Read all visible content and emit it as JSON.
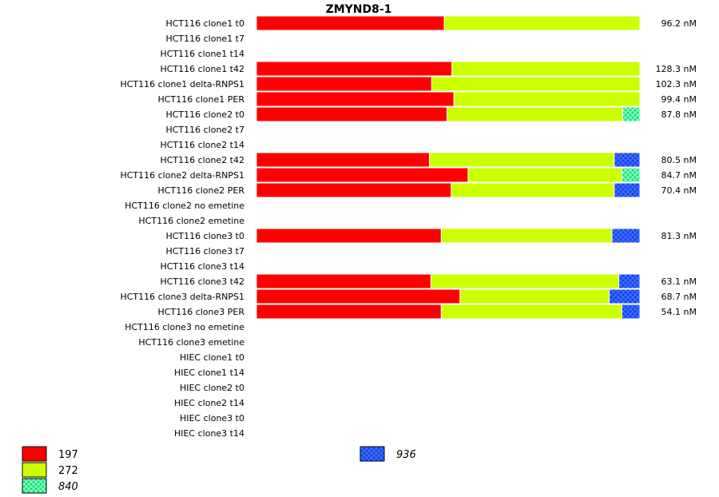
{
  "chart_data": {
    "type": "bar",
    "stacked": true,
    "normalized": true,
    "title": "ZMYND8-1",
    "categories": [
      "HCT116 clone1 t0",
      "HCT116 clone1 t7",
      "HCT116 clone1 t14",
      "HCT116 clone1 t42",
      "HCT116 clone1 delta-RNPS1",
      "HCT116 clone1 PER",
      "HCT116 clone2 t0",
      "HCT116 clone2 t7",
      "HCT116 clone2 t14",
      "HCT116 clone2 t42",
      "HCT116 clone2 delta-RNPS1",
      "HCT116 clone2 PER",
      "HCT116 clone2 no emetine",
      "HCT116 clone2 emetine",
      "HCT116 clone3 t0",
      "HCT116 clone3 t7",
      "HCT116 clone3 t14",
      "HCT116 clone3 t42",
      "HCT116 clone3 delta-RNPS1",
      "HCT116 clone3 PER",
      "HCT116 clone3 no emetine",
      "HCT116 clone3 emetine",
      "HIEC clone1 t0",
      "HIEC clone1 t14",
      "HIEC clone2 t0",
      "HIEC clone2 t14",
      "HIEC clone3 t0",
      "HIEC clone3 t14"
    ],
    "totals": [
      "96.2 nM",
      "",
      "",
      "128.3 nM",
      "102.3 nM",
      "99.4 nM",
      "87.8 nM",
      "",
      "",
      "80.5 nM",
      "84.7 nM",
      "70.4 nM",
      "",
      "",
      "81.3 nM",
      "",
      "",
      "63.1 nM",
      "68.7 nM",
      "54.1 nM",
      "",
      "",
      "",
      "",
      "",
      "",
      "",
      ""
    ],
    "series": [
      {
        "name": "197",
        "color": "#ff0000",
        "pattern": "solid",
        "italic": false,
        "values": [
          0.49,
          null,
          null,
          0.51,
          0.457,
          0.515,
          0.497,
          null,
          null,
          0.451,
          0.552,
          0.508,
          null,
          null,
          0.482,
          null,
          null,
          0.455,
          0.531,
          0.482,
          null,
          null,
          null,
          null,
          null,
          null,
          null,
          null
        ]
      },
      {
        "name": "272",
        "color": "#ccff00",
        "pattern": "solid",
        "italic": false,
        "values": [
          0.51,
          null,
          null,
          0.49,
          0.543,
          0.485,
          0.458,
          null,
          null,
          0.482,
          0.401,
          0.425,
          null,
          null,
          0.445,
          null,
          null,
          0.49,
          0.389,
          0.471,
          null,
          null,
          null,
          null,
          null,
          null,
          null,
          null
        ]
      },
      {
        "name": "840",
        "color": "#00ee77",
        "pattern": "crosshatch",
        "italic": true,
        "values": [
          0,
          null,
          null,
          0,
          0,
          0,
          0.045,
          null,
          null,
          0,
          0.047,
          0,
          null,
          null,
          0,
          null,
          null,
          0,
          0,
          0,
          null,
          null,
          null,
          null,
          null,
          null,
          null,
          null
        ]
      },
      {
        "name": "936",
        "color": "#1144ee",
        "pattern": "crosshatch",
        "italic": true,
        "values": [
          0,
          null,
          null,
          0,
          0,
          0,
          0,
          null,
          null,
          0.067,
          0,
          0.067,
          null,
          null,
          0.073,
          null,
          null,
          0.055,
          0.08,
          0.047,
          null,
          null,
          null,
          null,
          null,
          null,
          null,
          null
        ]
      }
    ],
    "xlim": [
      0,
      1
    ],
    "grid": false,
    "legend_position": "bottom"
  }
}
